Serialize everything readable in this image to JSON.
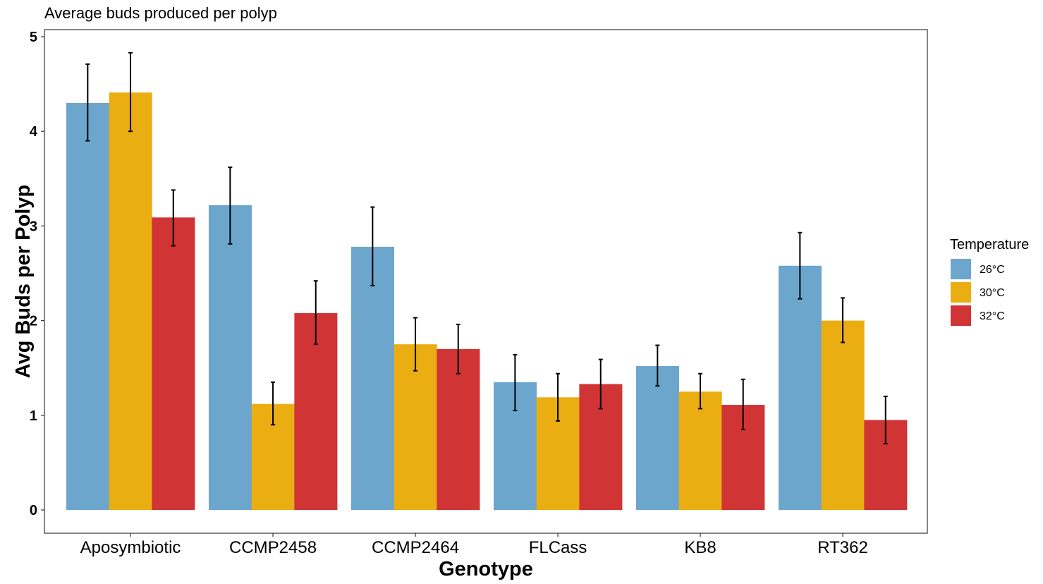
{
  "chart_data": {
    "type": "bar",
    "title": "Average buds produced per polyp",
    "xlabel": "Genotype",
    "ylabel": "Avg Buds per Polyp",
    "ylim": [
      0,
      5
    ],
    "yticks": [
      0,
      1,
      2,
      3,
      4,
      5
    ],
    "grid": false,
    "legend": {
      "title": "Temperature",
      "position": "right"
    },
    "categories": [
      "Aposymbiotic",
      "CCMP2458",
      "CCMP2464",
      "FLCass",
      "KB8",
      "RT362"
    ],
    "series": [
      {
        "name": "26°C",
        "color": "#6CA6CD",
        "values": [
          4.3,
          3.22,
          2.78,
          1.35,
          1.52,
          2.58
        ],
        "error_low": [
          3.9,
          2.81,
          2.37,
          1.05,
          1.31,
          2.23
        ],
        "error_high": [
          4.71,
          3.62,
          3.2,
          1.64,
          1.74,
          2.93
        ]
      },
      {
        "name": "30°C",
        "color": "#EAAD12",
        "values": [
          4.41,
          1.12,
          1.75,
          1.19,
          1.25,
          2.0
        ],
        "error_low": [
          4.0,
          0.9,
          1.47,
          0.94,
          1.07,
          1.77
        ],
        "error_high": [
          4.83,
          1.35,
          2.03,
          1.44,
          1.44,
          2.24
        ]
      },
      {
        "name": "32°C",
        "color": "#D03435",
        "values": [
          3.09,
          2.08,
          1.7,
          1.33,
          1.11,
          0.95
        ],
        "error_low": [
          2.79,
          1.75,
          1.44,
          1.07,
          0.85,
          0.7
        ],
        "error_high": [
          3.38,
          2.42,
          1.96,
          1.59,
          1.38,
          1.2
        ]
      }
    ]
  }
}
